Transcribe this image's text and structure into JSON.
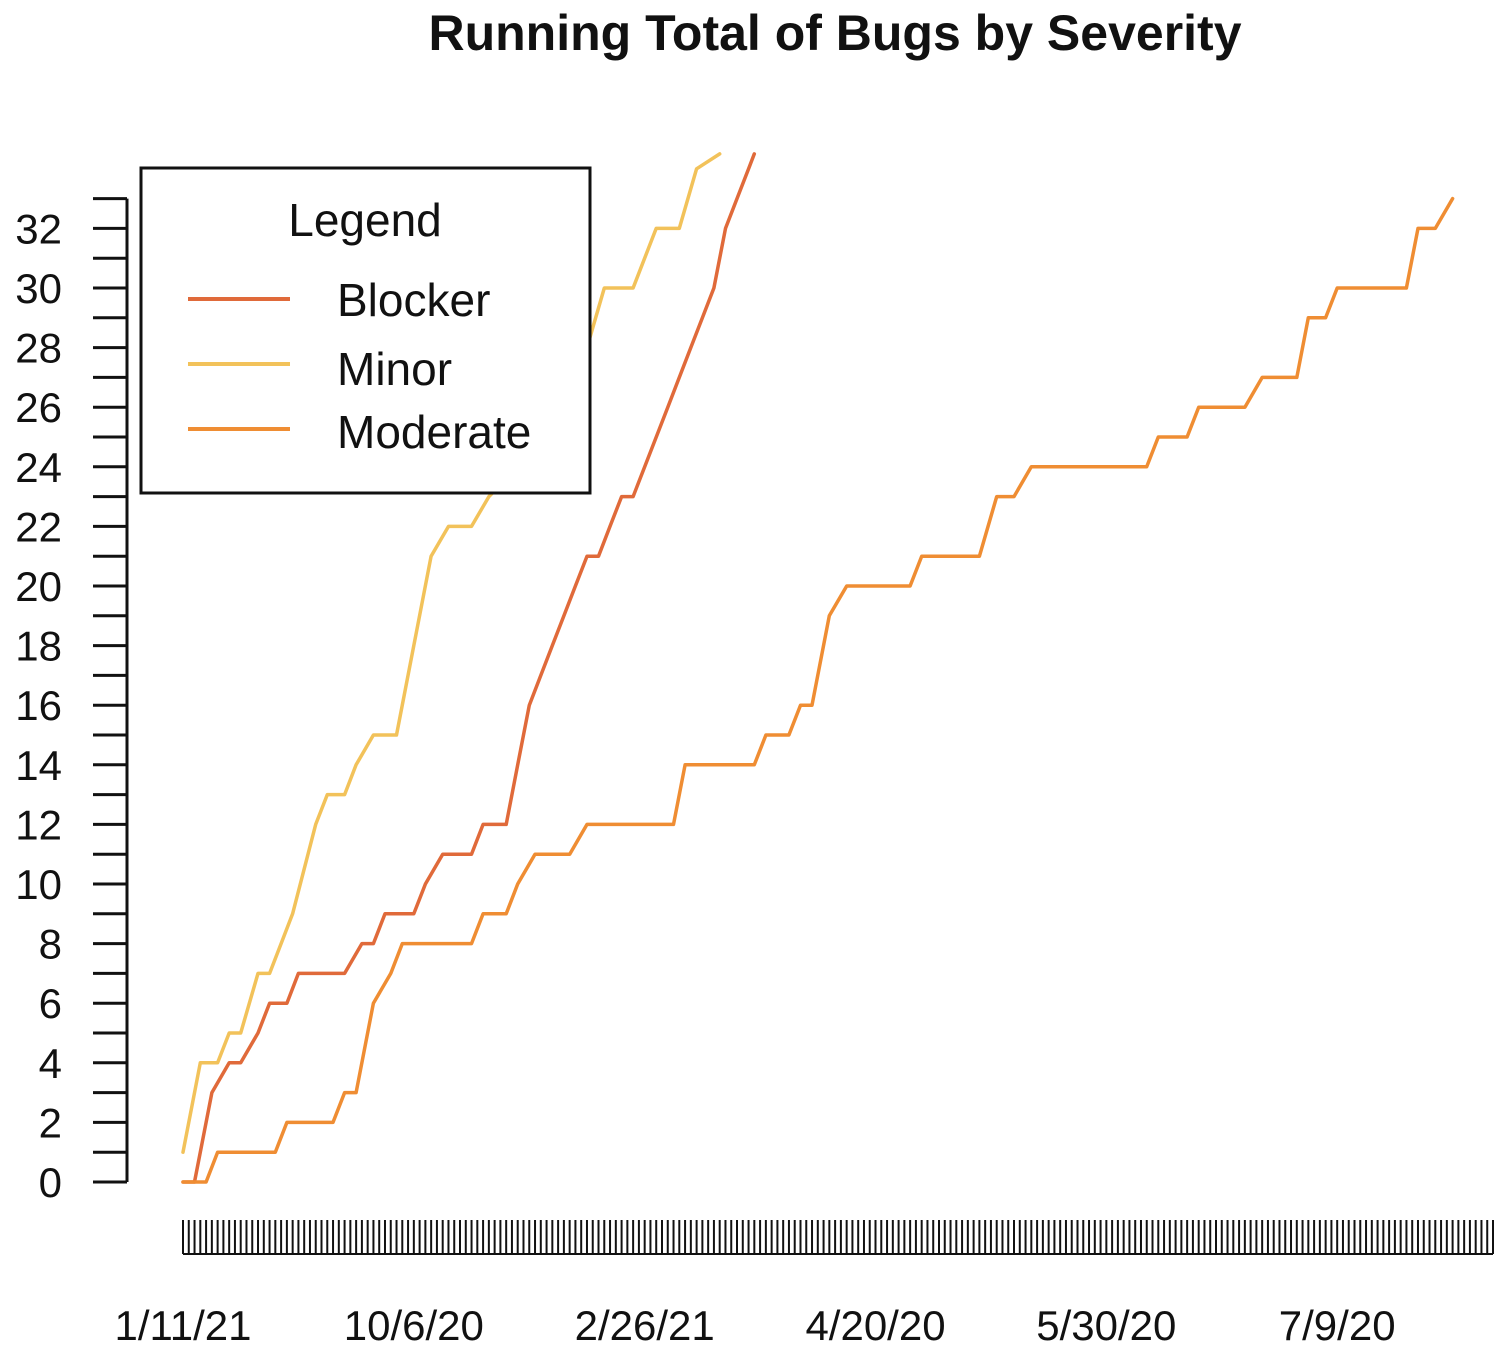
{
  "chart_data": {
    "type": "line",
    "title": "Running Total of Bugs by Severity",
    "xlabel": "",
    "ylabel": "",
    "x_tick_labels": [
      "1/11/21",
      "10/6/20",
      "2/26/21",
      "4/20/20",
      "5/30/20",
      "7/9/20"
    ],
    "x_label_indices": [
      0,
      40,
      80,
      120,
      160,
      200
    ],
    "x_count": 228,
    "y_ticks": [
      0,
      2,
      4,
      6,
      8,
      10,
      12,
      14,
      16,
      18,
      20,
      22,
      24,
      26,
      28,
      30,
      32
    ],
    "ylim": [
      0,
      33
    ],
    "y_clip": 34.5,
    "grid": false,
    "legend": {
      "title": "Legend",
      "position": "top-left"
    },
    "series": [
      {
        "name": "Blocker",
        "color": "#e06a3a",
        "points": [
          [
            0,
            0
          ],
          [
            2,
            0
          ],
          [
            5,
            3
          ],
          [
            8,
            4
          ],
          [
            10,
            4
          ],
          [
            13,
            5
          ],
          [
            15,
            6
          ],
          [
            18,
            6
          ],
          [
            20,
            7
          ],
          [
            28,
            7
          ],
          [
            31,
            8
          ],
          [
            33,
            8
          ],
          [
            35,
            9
          ],
          [
            40,
            9
          ],
          [
            42,
            10
          ],
          [
            45,
            11
          ],
          [
            50,
            11
          ],
          [
            52,
            12
          ],
          [
            56,
            12
          ],
          [
            58,
            14
          ],
          [
            60,
            16
          ],
          [
            62,
            17
          ],
          [
            64,
            18
          ],
          [
            66,
            19
          ],
          [
            68,
            20
          ],
          [
            70,
            21
          ],
          [
            72,
            21
          ],
          [
            74,
            22
          ],
          [
            76,
            23
          ],
          [
            78,
            23
          ],
          [
            80,
            24
          ],
          [
            84,
            26
          ],
          [
            88,
            28
          ],
          [
            90,
            29
          ],
          [
            92,
            30
          ],
          [
            94,
            32
          ],
          [
            96,
            33
          ],
          [
            98,
            34
          ],
          [
            99,
            34.5
          ]
        ]
      },
      {
        "name": "Minor",
        "color": "#f2c25a",
        "points": [
          [
            0,
            1
          ],
          [
            3,
            4
          ],
          [
            6,
            4
          ],
          [
            8,
            5
          ],
          [
            10,
            5
          ],
          [
            13,
            7
          ],
          [
            15,
            7
          ],
          [
            17,
            8
          ],
          [
            19,
            9
          ],
          [
            23,
            12
          ],
          [
            25,
            13
          ],
          [
            28,
            13
          ],
          [
            30,
            14
          ],
          [
            33,
            15
          ],
          [
            37,
            15
          ],
          [
            40,
            18
          ],
          [
            43,
            21
          ],
          [
            46,
            22
          ],
          [
            50,
            22
          ],
          [
            53,
            23
          ],
          [
            58,
            24
          ],
          [
            62,
            26
          ],
          [
            66,
            27
          ],
          [
            70,
            28
          ],
          [
            73,
            30
          ],
          [
            78,
            30
          ],
          [
            82,
            32
          ],
          [
            86,
            32
          ],
          [
            89,
            34
          ],
          [
            93,
            34.5
          ]
        ]
      },
      {
        "name": "Moderate",
        "color": "#ef8d33",
        "points": [
          [
            0,
            0
          ],
          [
            4,
            0
          ],
          [
            6,
            1
          ],
          [
            16,
            1
          ],
          [
            18,
            2
          ],
          [
            26,
            2
          ],
          [
            28,
            3
          ],
          [
            30,
            3
          ],
          [
            33,
            6
          ],
          [
            36,
            7
          ],
          [
            38,
            8
          ],
          [
            50,
            8
          ],
          [
            52,
            9
          ],
          [
            56,
            9
          ],
          [
            58,
            10
          ],
          [
            61,
            11
          ],
          [
            67,
            11
          ],
          [
            70,
            12
          ],
          [
            85,
            12
          ],
          [
            87,
            14
          ],
          [
            99,
            14
          ],
          [
            101,
            15
          ],
          [
            105,
            15
          ],
          [
            107,
            16
          ],
          [
            109,
            16
          ],
          [
            112,
            19
          ],
          [
            115,
            20
          ],
          [
            126,
            20
          ],
          [
            128,
            21
          ],
          [
            138,
            21
          ],
          [
            141,
            23
          ],
          [
            144,
            23
          ],
          [
            147,
            24
          ],
          [
            167,
            24
          ],
          [
            169,
            25
          ],
          [
            174,
            25
          ],
          [
            176,
            26
          ],
          [
            184,
            26
          ],
          [
            187,
            27
          ],
          [
            193,
            27
          ],
          [
            195,
            29
          ],
          [
            198,
            29
          ],
          [
            200,
            30
          ],
          [
            212,
            30
          ],
          [
            214,
            32
          ],
          [
            217,
            32
          ],
          [
            220,
            33
          ]
        ]
      }
    ]
  }
}
